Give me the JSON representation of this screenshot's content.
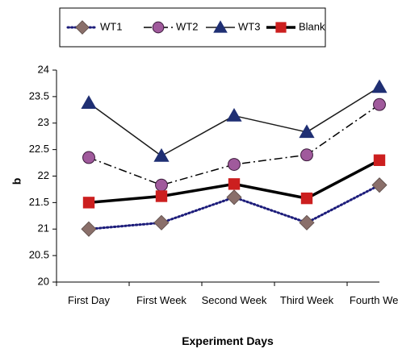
{
  "chart_data": {
    "type": "line",
    "title": "",
    "xlabel": "Experiment Days",
    "ylabel": "b",
    "ylim": [
      20,
      24
    ],
    "ytick_step": 0.5,
    "grid": false,
    "legend_position": "top",
    "categories": [
      "First Day",
      "First Week",
      "Second Week",
      "Third Week",
      "Fourth Week"
    ],
    "series": [
      {
        "name": "WT1",
        "values": [
          21.0,
          21.12,
          21.6,
          21.12,
          21.83
        ],
        "line_color": "#1c1c7a",
        "line_style": "dotted",
        "marker": "diamond",
        "marker_color": "#8a6f6a"
      },
      {
        "name": "WT2",
        "values": [
          22.35,
          21.83,
          22.22,
          22.4,
          23.35
        ],
        "line_color": "#000000",
        "line_style": "dash-dot",
        "marker": "circle",
        "marker_color": "#a05a9c"
      },
      {
        "name": "WT3",
        "values": [
          23.38,
          22.38,
          23.14,
          22.83,
          23.68
        ],
        "line_color": "#1a1a1a",
        "line_style": "solid",
        "marker": "triangle",
        "marker_color": "#1f2f73"
      },
      {
        "name": "Blank",
        "values": [
          21.5,
          21.62,
          21.85,
          21.58,
          22.3
        ],
        "line_color": "#000000",
        "line_style": "solid-thick",
        "marker": "square",
        "marker_color": "#cc1f1f"
      }
    ]
  }
}
